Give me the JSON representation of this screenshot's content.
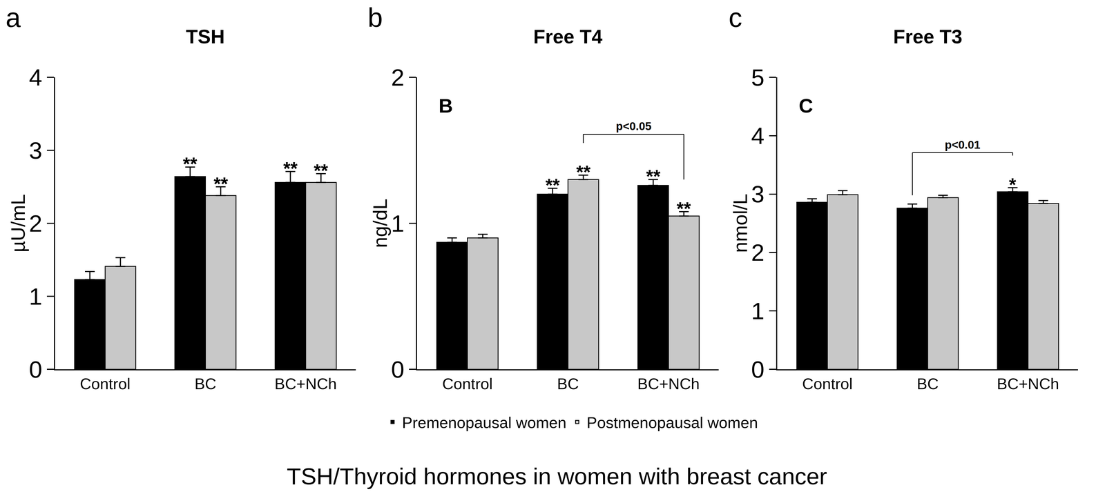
{
  "caption": "TSH/Thyroid hormones in women with breast cancer",
  "chart_data": [
    {
      "type": "bar",
      "panel_label": "a",
      "title": "TSH",
      "y_label": "µU/mL",
      "categories": [
        "Control",
        "BC",
        "BC+NCh"
      ],
      "series": [
        {
          "name": "Premenopausal women",
          "color": "#000000",
          "values": [
            1.23,
            2.64,
            2.56
          ],
          "error": [
            0.11,
            0.13,
            0.15
          ],
          "significance": [
            null,
            "**",
            "**"
          ]
        },
        {
          "name": "Postmenopausal women",
          "color": "#c8c8c8",
          "values": [
            1.41,
            2.38,
            2.56
          ],
          "error": [
            0.12,
            0.12,
            0.12
          ],
          "significance": [
            null,
            "**",
            "**"
          ]
        }
      ],
      "ylim": [
        0,
        4
      ],
      "yticks": [
        0,
        1,
        2,
        3,
        4
      ],
      "grid": false,
      "legend": "bottom"
    },
    {
      "type": "bar",
      "panel_label": "b",
      "inner_label": "B",
      "title": "Free T4",
      "y_label": "ng/dL",
      "categories": [
        "Control",
        "BC",
        "BC+NCh"
      ],
      "series": [
        {
          "name": "Premenopausal women",
          "color": "#000000",
          "values": [
            0.87,
            1.2,
            1.26
          ],
          "error": [
            0.03,
            0.04,
            0.04
          ],
          "significance": [
            null,
            "**",
            "**"
          ]
        },
        {
          "name": "Postmenopausal women",
          "color": "#c8c8c8",
          "values": [
            0.9,
            1.3,
            1.05
          ],
          "error": [
            0.025,
            0.03,
            0.03
          ],
          "significance": [
            null,
            "**",
            "**"
          ]
        }
      ],
      "brackets": [
        {
          "from": {
            "category": "BC",
            "series": "Postmenopausal women"
          },
          "to": {
            "category": "BC+NCh",
            "series": "Postmenopausal women"
          },
          "y": 1.61,
          "text": "p<0.05"
        }
      ],
      "ylim": [
        0,
        2
      ],
      "yticks": [
        0,
        1,
        2
      ],
      "grid": false,
      "legend": "bottom"
    },
    {
      "type": "bar",
      "panel_label": "c",
      "inner_label": "C",
      "title": "Free T3",
      "y_label": "nmol/L",
      "categories": [
        "Control",
        "BC",
        "BC+NCh"
      ],
      "series": [
        {
          "name": "Premenopausal women",
          "color": "#000000",
          "values": [
            2.86,
            2.76,
            3.04
          ],
          "error": [
            0.06,
            0.07,
            0.07
          ],
          "significance": [
            null,
            null,
            "*"
          ]
        },
        {
          "name": "Postmenopausal women",
          "color": "#c8c8c8",
          "values": [
            2.99,
            2.94,
            2.84
          ],
          "error": [
            0.07,
            0.04,
            0.05
          ],
          "significance": [
            null,
            null,
            null
          ]
        }
      ],
      "brackets": [
        {
          "from": {
            "category": "BC",
            "series": "Premenopausal women"
          },
          "to": {
            "category": "BC+NCh",
            "series": "Premenopausal women"
          },
          "y": 3.71,
          "text": "p<0.01"
        }
      ],
      "ylim": [
        0,
        5
      ],
      "yticks": [
        0,
        1,
        2,
        3,
        4,
        5
      ],
      "grid": false,
      "legend": "bottom"
    }
  ]
}
